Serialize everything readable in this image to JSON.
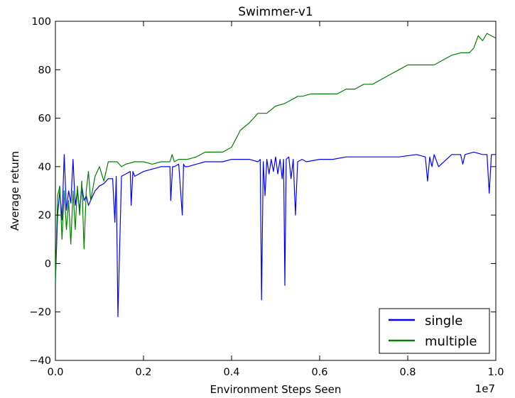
{
  "chart_data": {
    "type": "line",
    "title": "Swimmer-v1",
    "xlabel": "Environment Steps Seen",
    "ylabel": "Average return",
    "x_offset_label": "1e7",
    "xlim": [
      0.0,
      1.0
    ],
    "ylim": [
      -40,
      100
    ],
    "x_ticks": [
      0.0,
      0.2,
      0.4,
      0.6,
      0.8,
      1.0
    ],
    "x_tick_labels": [
      "0.0",
      "0.2",
      "0.4",
      "0.6",
      "0.8",
      "1.0"
    ],
    "y_ticks": [
      -40,
      -20,
      0,
      20,
      40,
      60,
      80,
      100
    ],
    "y_tick_labels": [
      "−40",
      "−20",
      "0",
      "20",
      "40",
      "60",
      "80",
      "100"
    ],
    "grid": false,
    "legend_position": "lower-right",
    "series": [
      {
        "name": "single",
        "color": "#0000ff",
        "x": [
          0.0,
          0.005,
          0.01,
          0.015,
          0.02,
          0.025,
          0.03,
          0.035,
          0.04,
          0.045,
          0.05,
          0.055,
          0.06,
          0.065,
          0.07,
          0.075,
          0.08,
          0.09,
          0.1,
          0.11,
          0.12,
          0.13,
          0.135,
          0.138,
          0.142,
          0.15,
          0.16,
          0.17,
          0.172,
          0.176,
          0.18,
          0.2,
          0.22,
          0.24,
          0.26,
          0.262,
          0.266,
          0.27,
          0.28,
          0.288,
          0.291,
          0.294,
          0.3,
          0.32,
          0.34,
          0.36,
          0.38,
          0.4,
          0.42,
          0.44,
          0.46,
          0.465,
          0.468,
          0.472,
          0.476,
          0.48,
          0.485,
          0.49,
          0.495,
          0.5,
          0.505,
          0.51,
          0.515,
          0.518,
          0.521,
          0.524,
          0.53,
          0.535,
          0.54,
          0.545,
          0.55,
          0.56,
          0.57,
          0.6,
          0.63,
          0.66,
          0.7,
          0.74,
          0.78,
          0.82,
          0.84,
          0.845,
          0.85,
          0.855,
          0.86,
          0.87,
          0.9,
          0.92,
          0.925,
          0.93,
          0.95,
          0.97,
          0.98,
          0.985,
          0.99,
          1.0
        ],
        "y": [
          -8,
          20,
          30,
          18,
          45,
          22,
          30,
          25,
          43,
          24,
          30,
          22,
          32,
          26,
          28,
          24,
          26,
          30,
          32,
          33,
          35,
          35,
          17,
          36,
          -22,
          36,
          37,
          38,
          24,
          38,
          36,
          38,
          39,
          40,
          40,
          26,
          40,
          40,
          41,
          20,
          41,
          40,
          40,
          41,
          42,
          42,
          42,
          43,
          43,
          43,
          42,
          43,
          -15,
          42,
          28,
          43,
          37,
          43,
          38,
          44,
          37,
          43,
          35,
          43,
          -9,
          43,
          44,
          35,
          43,
          20,
          42,
          43,
          42,
          43,
          43,
          44,
          44,
          44,
          44,
          45,
          44,
          34,
          44,
          40,
          45,
          40,
          45,
          45,
          41,
          45,
          46,
          45,
          45,
          29,
          45,
          45
        ]
      },
      {
        "name": "multiple",
        "color": "#008000",
        "x": [
          0.0,
          0.005,
          0.01,
          0.015,
          0.02,
          0.025,
          0.03,
          0.035,
          0.04,
          0.045,
          0.05,
          0.055,
          0.06,
          0.065,
          0.07,
          0.075,
          0.08,
          0.09,
          0.1,
          0.11,
          0.12,
          0.13,
          0.14,
          0.15,
          0.16,
          0.18,
          0.2,
          0.22,
          0.24,
          0.26,
          0.265,
          0.27,
          0.28,
          0.3,
          0.32,
          0.34,
          0.36,
          0.38,
          0.4,
          0.42,
          0.44,
          0.46,
          0.48,
          0.5,
          0.52,
          0.54,
          0.55,
          0.56,
          0.58,
          0.6,
          0.62,
          0.64,
          0.66,
          0.68,
          0.7,
          0.72,
          0.74,
          0.76,
          0.78,
          0.8,
          0.82,
          0.84,
          0.86,
          0.88,
          0.9,
          0.92,
          0.94,
          0.95,
          0.96,
          0.97,
          0.98,
          0.99,
          1.0
        ],
        "y": [
          -8,
          28,
          32,
          10,
          30,
          14,
          26,
          8,
          30,
          14,
          32,
          20,
          34,
          6,
          30,
          38,
          26,
          36,
          40,
          34,
          42,
          42,
          42,
          40,
          41,
          42,
          42,
          41,
          42,
          42,
          45,
          42,
          43,
          43,
          44,
          46,
          46,
          46,
          48,
          55,
          58,
          62,
          62,
          65,
          66,
          68,
          69,
          69,
          70,
          70,
          70,
          70,
          72,
          72,
          74,
          74,
          76,
          78,
          80,
          82,
          82,
          82,
          82,
          84,
          86,
          87,
          87,
          89,
          94,
          92,
          95,
          94,
          93
        ]
      }
    ]
  }
}
